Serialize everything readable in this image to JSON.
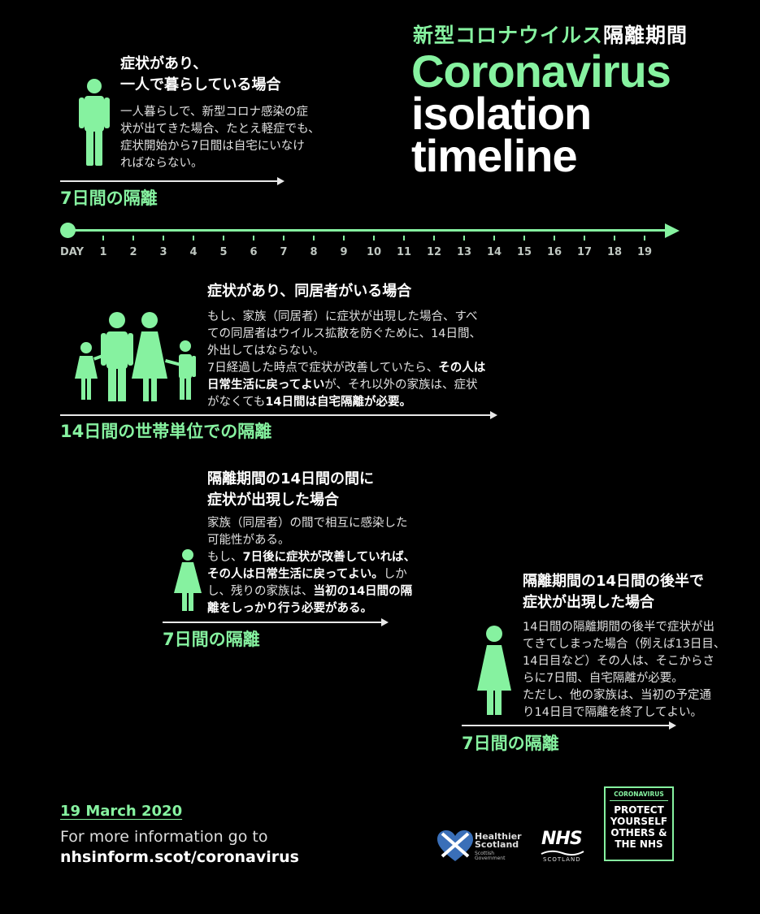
{
  "header": {
    "jp_title_green": "新型コロナウイルス",
    "jp_title_white": "隔離期間",
    "en_title_line1": "Coronavirus",
    "en_title_line2": "isolation",
    "en_title_line3": "timeline"
  },
  "timeline": {
    "day_label": "DAY",
    "days": [
      "1",
      "2",
      "3",
      "4",
      "5",
      "6",
      "7",
      "8",
      "9",
      "10",
      "11",
      "12",
      "13",
      "14",
      "15",
      "16",
      "17",
      "18",
      "19"
    ]
  },
  "section1": {
    "heading_line1": "症状があり、",
    "heading_line2": "一人で暮らしている場合",
    "body": [
      "一人暮らしで、新型コロナ感染の症",
      "状が出てきた場合、たとえ軽症でも、",
      "症状開始から7日間は自宅にいなけ",
      "ればならない。"
    ],
    "period": "7日間の隔離"
  },
  "section2": {
    "heading": "症状があり、同居者がいる場合",
    "body_line1": "もし、家族（同居者）に症状が出現した場合、すべ",
    "body_line2": "ての同居者はウイルス拡散を防ぐために、14日間、",
    "body_line3": "外出してはならない。",
    "body_line4a": "7日経過した時点で症状が改善していたら、",
    "body_line4b": "その人は",
    "body_line5a": "日常生活に戻ってよい",
    "body_line5b": "が、それ以外の家族は、症状",
    "body_line6a": "がなくても",
    "body_line6b": "14日間は自宅隔離が必要。",
    "period": "14日間の世帯単位での隔離"
  },
  "section3": {
    "heading_line1": "隔離期間の14日間の間に",
    "heading_line2": "症状が出現した場合",
    "body_line1": "家族（同居者）の間で相互に感染した",
    "body_line2": "可能性がある。",
    "body_line3a": "もし、",
    "body_line3b": "7日後に症状が改善していれば、",
    "body_line4a": "その人は日常生活に戻ってよい。",
    "body_line4b": "しか",
    "body_line5a": "し、残りの家族は、",
    "body_line5b": "当初の14日間の隔",
    "body_line6": "離をしっかり行う必要がある。",
    "period": "7日間の隔離"
  },
  "section4": {
    "heading_line1": "隔離期間の14日間の後半で",
    "heading_line2": "症状が出現した場合",
    "body": [
      "14日間の隔離期間の後半で症状が出",
      "てきてしまった場合（例えば13日目、",
      "14日目など）その人は、そこからさ",
      "らに7日間、自宅隔離が必要。",
      "ただし、他の家族は、当初の予定通",
      "り14日目で隔離を終了してよい。"
    ],
    "period": "7日間の隔離"
  },
  "footer": {
    "date": "19 March 2020",
    "info_line1": "For more information go to",
    "info_line2": "nhsinform.scot/coronavirus",
    "healthier_line1": "Healthier",
    "healthier_line2": "Scotland",
    "healthier_sub1": "Scottish",
    "healthier_sub2": "Government",
    "nhs": "NHS",
    "nhs_sub": "SCOTLAND",
    "protect_caption": "CORONAVIRUS",
    "protect_line1": "PROTECT",
    "protect_line2": "YOURSELF",
    "protect_line3": "OTHERS &",
    "protect_line4": "THE NHS"
  },
  "colors": {
    "accent": "#86f2a0",
    "background": "#000000",
    "text": "#e6e6e6"
  }
}
